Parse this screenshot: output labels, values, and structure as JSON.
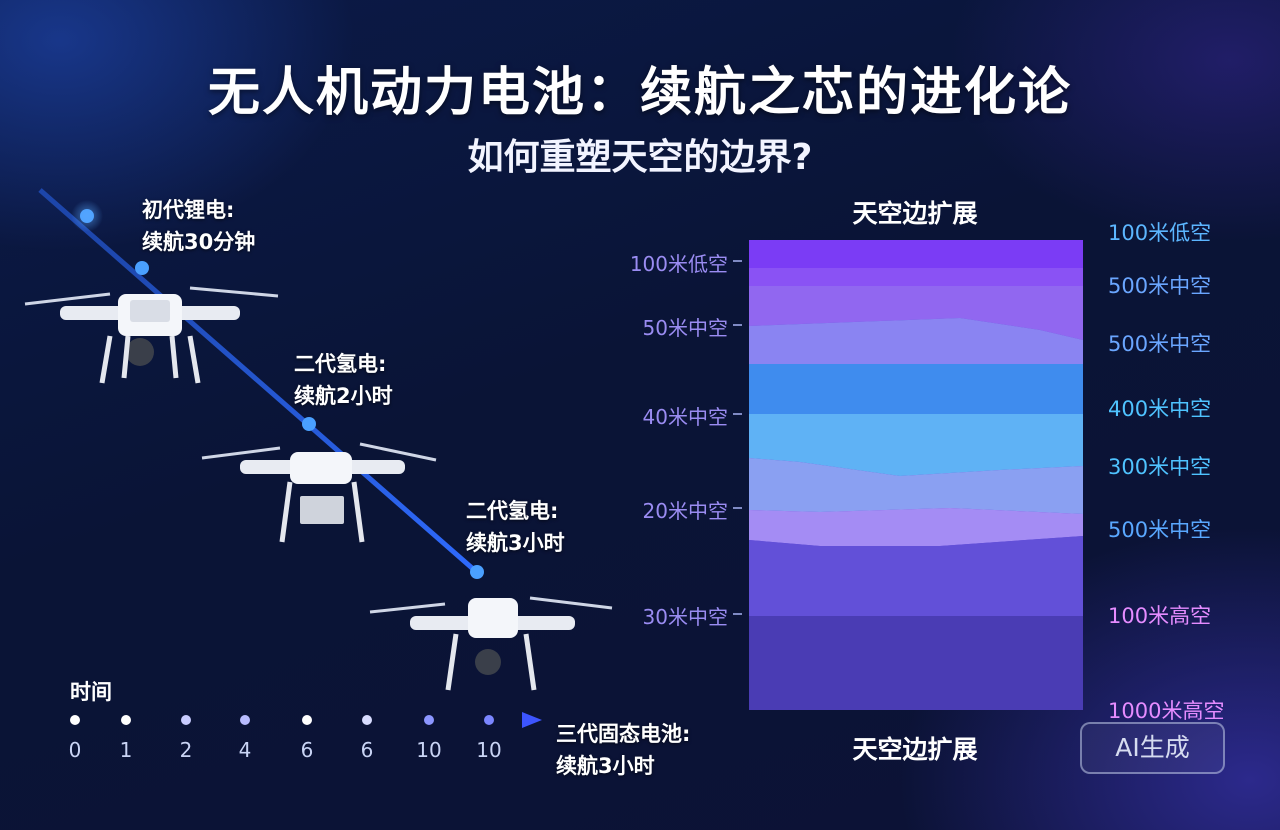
{
  "title": "无人机动力电池：续航之芯的进化论",
  "subtitle": "如何重塑天空的边界?",
  "stages": [
    {
      "line1": "初代锂电:",
      "line2": "续航30分钟"
    },
    {
      "line1": "二代氢电:",
      "line2": "续航2小时"
    },
    {
      "line1": "二代氢电:",
      "line2": "续航3小时"
    },
    {
      "line1": "三代固态电池:",
      "line2": "续航3小时"
    }
  ],
  "timeline": {
    "label": "时间",
    "ticks": [
      "0",
      "1",
      "2",
      "4",
      "6",
      "6",
      "10",
      "10"
    ]
  },
  "sky_chart": {
    "header_top": "天空边扩展",
    "header_bottom": "天空边扩展",
    "left_labels": [
      "100米低空",
      "50米中空",
      "40米中空",
      "20米中空",
      "30米中空"
    ],
    "right_labels": [
      {
        "text": "100米低空",
        "color": "#5cb6ff"
      },
      {
        "text": "500米中空",
        "color": "#6aa6ff"
      },
      {
        "text": "500米中空",
        "color": "#6aa6ff"
      },
      {
        "text": "400米中空",
        "color": "#4fc3ff"
      },
      {
        "text": "300米中空",
        "color": "#4fc3ff"
      },
      {
        "text": "500米中空",
        "color": "#5aa8ff"
      },
      {
        "text": "100米高空",
        "color": "#e58cff"
      },
      {
        "text": "1000米高空",
        "color": "#e58cff"
      }
    ]
  },
  "badge": "AI生成"
}
